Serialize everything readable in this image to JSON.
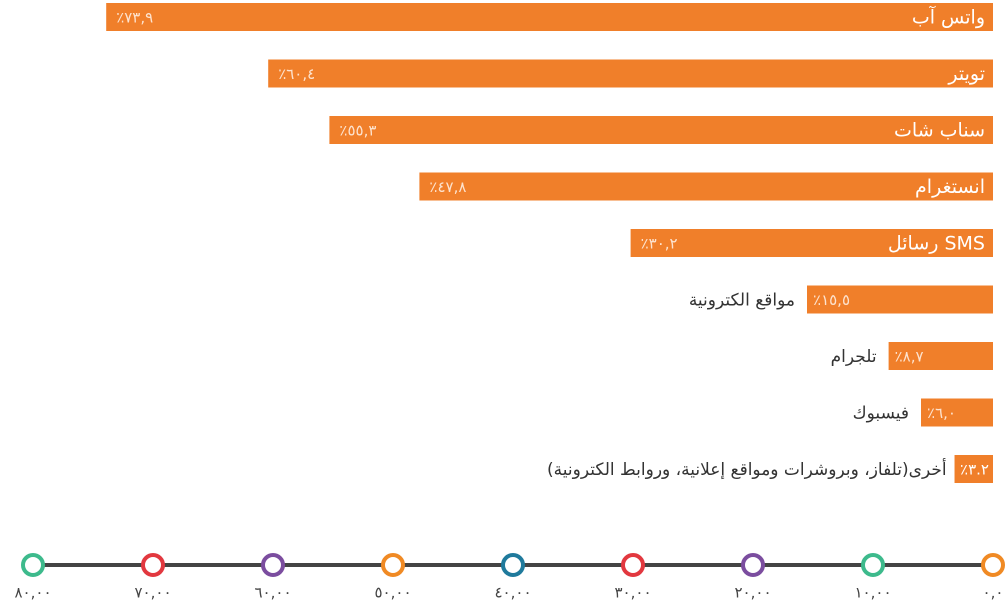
{
  "chart_data": {
    "type": "bar",
    "orientation": "horizontal",
    "direction": "rtl",
    "categories": [
      "واتس آب",
      "تويتر",
      "سناب شات",
      "انستغرام",
      "رسائل SMS",
      "مواقع الكترونية",
      "تلجرام",
      "فيسبوك",
      "أخرى(تلفاز، وبروشرات ومواقع إعلانية، وروابط الكترونية)"
    ],
    "values": [
      73.9,
      60.4,
      55.3,
      47.8,
      30.2,
      15.5,
      8.7,
      6.0,
      3.2
    ],
    "value_labels": [
      "٪٧٣,٩",
      "٪٦٠,٤",
      "٪٥٥,٣",
      "٪٤٧,٨",
      "٪٣٠,٢",
      "٪١٥,٥",
      "٪٨,٧",
      "٪٦,٠",
      "٪٣.٢"
    ],
    "color": "#f07f2a",
    "xlim": [
      0,
      80
    ],
    "xticks": [
      {
        "value": 80,
        "label": "٨٠,٠٠"
      },
      {
        "value": 70,
        "label": "٧٠,٠٠"
      },
      {
        "value": 60,
        "label": "٦٠,٠٠"
      },
      {
        "value": 50,
        "label": "٥٠,٠٠"
      },
      {
        "value": 40,
        "label": "٤٠,٠٠"
      },
      {
        "value": 30,
        "label": "٣٠,٠٠"
      },
      {
        "value": 20,
        "label": "٢٠,٠٠"
      },
      {
        "value": 10,
        "label": "١٠,٠٠"
      },
      {
        "value": 0,
        "label": "٠,٠"
      }
    ],
    "xtick_colors": [
      "#3dba8c",
      "#e2383f",
      "#7b4d9f",
      "#f08a24",
      "#1f7a9c",
      "#e2383f",
      "#7b4d9f",
      "#3dba8c",
      "#f08a24"
    ]
  }
}
